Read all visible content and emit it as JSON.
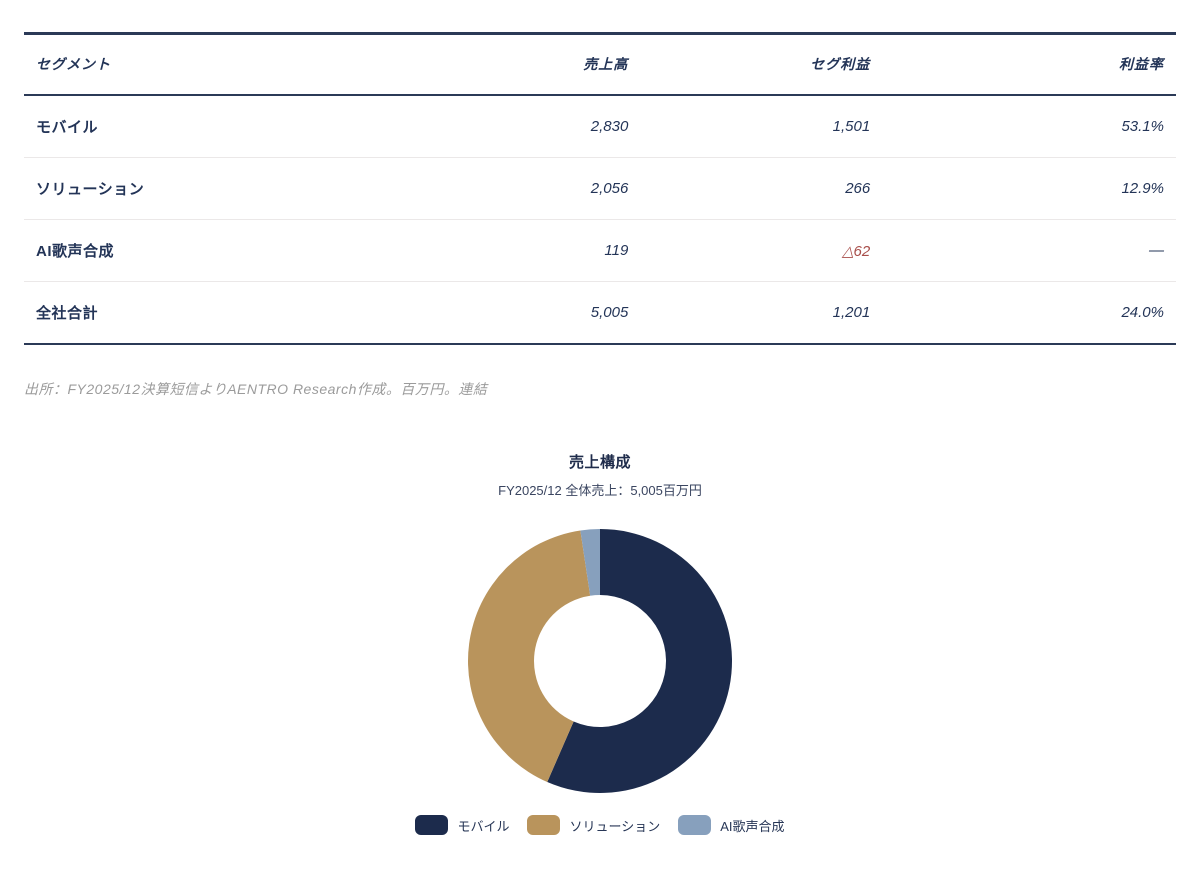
{
  "table": {
    "columns": {
      "segment": "セグメント",
      "revenue": "売上高",
      "profit": "セグ利益",
      "margin": "利益率"
    },
    "rows": [
      {
        "segment": "モバイル",
        "revenue": "2,830",
        "profit": "1,501",
        "margin": "53.1%"
      },
      {
        "segment": "ソリューション",
        "revenue": "2,056",
        "profit": "266",
        "margin": "12.9%"
      },
      {
        "segment": "AI歌声合成",
        "revenue": "119",
        "profit": "△62",
        "margin": "—"
      },
      {
        "segment": "全社合計",
        "revenue": "5,005",
        "profit": "1,201",
        "margin": "24.0%"
      }
    ],
    "negative_color": "#a84e4a"
  },
  "source_note": "出所：FY2025/12決算短信よりAENTRO Research作成。百万円。連結",
  "chart_data": {
    "type": "pie",
    "donut": true,
    "title": "売上構成",
    "subtitle": "FY2025/12 全体売上：5,005百万円",
    "categories": [
      "モバイル",
      "ソリューション",
      "AI歌声合成"
    ],
    "values": [
      2830,
      2056,
      119
    ],
    "total": 5005,
    "unit": "百万円",
    "colors": [
      "#1c2b4c",
      "#b9945c",
      "#87a0bd"
    ],
    "legend_position": "bottom",
    "start_angle_deg": -90,
    "direction": "clockwise",
    "outer_radius": 132,
    "inner_radius": 66
  },
  "theme": {
    "navy": "#233457",
    "border_navy": "#2b3a57",
    "row_divider": "#ebe8e8",
    "note_gray": "#9b9b9b"
  }
}
